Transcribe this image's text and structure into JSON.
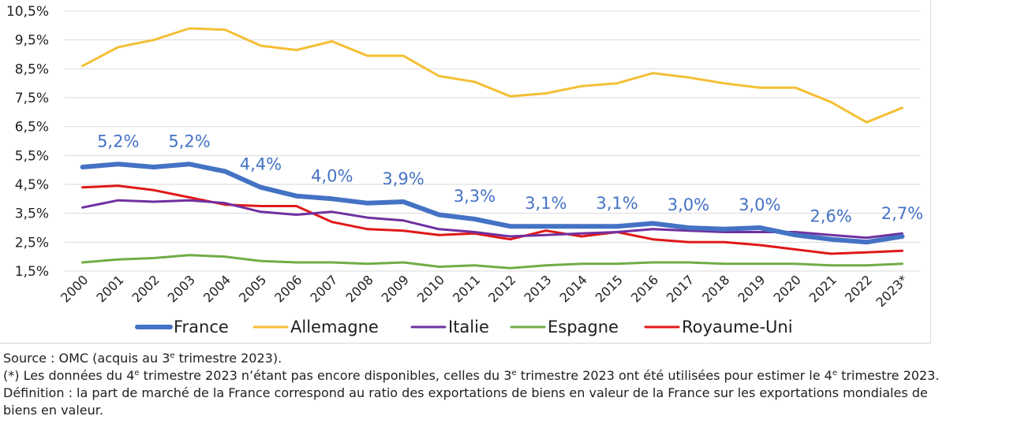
{
  "chart_data": {
    "type": "line",
    "x": [
      "2000",
      "2001",
      "2002",
      "2003",
      "2004",
      "2005",
      "2006",
      "2007",
      "2008",
      "2009",
      "2010",
      "2011",
      "2012",
      "2013",
      "2014",
      "2015",
      "2016",
      "2017",
      "2018",
      "2019",
      "2020",
      "2021",
      "2022",
      "2023*"
    ],
    "yticks": [
      "1,5%",
      "2,5%",
      "3,5%",
      "4,5%",
      "5,5%",
      "6,5%",
      "7,5%",
      "8,5%",
      "9,5%",
      "10,5%"
    ],
    "ylim": [
      1.5,
      10.5
    ],
    "grid": true,
    "legend_position": "bottom",
    "series": [
      {
        "name": "France",
        "color": "#4472c4",
        "width": 6,
        "values": [
          5.1,
          5.2,
          5.1,
          5.2,
          4.95,
          4.4,
          4.1,
          4.0,
          3.85,
          3.9,
          3.45,
          3.3,
          3.05,
          3.05,
          3.05,
          3.05,
          3.15,
          3.0,
          2.95,
          3.0,
          2.75,
          2.6,
          2.5,
          2.7
        ]
      },
      {
        "name": "Allemagne",
        "color": "#f4bf35",
        "width": 3,
        "values": [
          8.6,
          9.25,
          9.5,
          9.9,
          9.85,
          9.3,
          9.15,
          9.45,
          8.95,
          8.95,
          8.25,
          8.05,
          7.55,
          7.65,
          7.9,
          8.0,
          8.35,
          8.2,
          8.0,
          7.85,
          7.85,
          7.35,
          6.65,
          7.15
        ]
      },
      {
        "name": "Italie",
        "color": "#7030a0",
        "width": 3,
        "values": [
          3.7,
          3.95,
          3.9,
          3.95,
          3.85,
          3.55,
          3.45,
          3.55,
          3.35,
          3.25,
          2.95,
          2.85,
          2.7,
          2.75,
          2.8,
          2.85,
          2.95,
          2.9,
          2.85,
          2.85,
          2.85,
          2.75,
          2.65,
          2.8
        ]
      },
      {
        "name": "Espagne",
        "color": "#70ad47",
        "width": 3,
        "values": [
          1.8,
          1.9,
          1.95,
          2.05,
          2.0,
          1.85,
          1.8,
          1.8,
          1.75,
          1.8,
          1.65,
          1.7,
          1.6,
          1.7,
          1.75,
          1.75,
          1.8,
          1.8,
          1.75,
          1.75,
          1.75,
          1.7,
          1.7,
          1.75
        ]
      },
      {
        "name": "Royaume-Uni",
        "color": "#e01818",
        "width": 3,
        "values": [
          4.4,
          4.45,
          4.3,
          4.05,
          3.8,
          3.75,
          3.75,
          3.2,
          2.95,
          2.9,
          2.75,
          2.8,
          2.6,
          2.9,
          2.7,
          2.85,
          2.6,
          2.5,
          2.5,
          2.4,
          2.25,
          2.1,
          2.15,
          2.2
        ]
      }
    ],
    "data_labels": [
      {
        "index": 1,
        "text": "5,2%"
      },
      {
        "index": 3,
        "text": "5,2%"
      },
      {
        "index": 5,
        "text": "4,4%"
      },
      {
        "index": 7,
        "text": "4,0%"
      },
      {
        "index": 9,
        "text": "3,9%"
      },
      {
        "index": 11,
        "text": "3,3%"
      },
      {
        "index": 13,
        "text": "3,1%"
      },
      {
        "index": 15,
        "text": "3,1%"
      },
      {
        "index": 17,
        "text": "3,0%"
      },
      {
        "index": 19,
        "text": "3,0%"
      },
      {
        "index": 21,
        "text": "2,6%"
      },
      {
        "index": 23,
        "text": "2,7%"
      }
    ]
  },
  "notes": {
    "source_pre": "Source : OMC (acquis au 3",
    "source_sup": "e",
    "source_post": " trimestre 2023).",
    "footnote_a": "(*) Les données du 4",
    "footnote_sup1": "e",
    "footnote_b": " trimestre 2023 n’étant pas encore disponibles, celles du 3",
    "footnote_sup2": "e",
    "footnote_c": " trimestre 2023 ont été utilisées pour estimer le 4",
    "footnote_sup3": "e",
    "footnote_d": " trimestre 2023.",
    "definition": "Définition : la part de marché de la France correspond au ratio des exportations de biens en valeur de la France sur les exportations mondiales de biens en valeur."
  }
}
